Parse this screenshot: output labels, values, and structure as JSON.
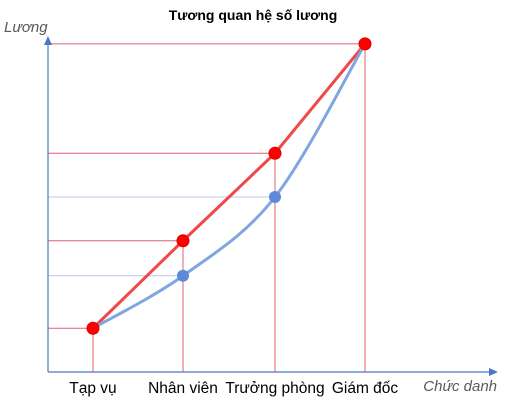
{
  "chart_data": {
    "type": "line",
    "title": "Tương quan hệ số lương",
    "xlabel": "Chức danh",
    "ylabel": "Lương",
    "categories": [
      "Tạp vụ",
      "Nhân viên",
      "Trưởng phòng",
      "Giám đốc"
    ],
    "series": [
      {
        "values": [
          1.0,
          3.0,
          5.0,
          7.5
        ],
        "color": "#f04848"
      },
      {
        "values": [
          1.0,
          2.2,
          4.0,
          7.5
        ],
        "color": "#7fa6e0"
      }
    ],
    "ylim": [
      0,
      8
    ],
    "grid": false,
    "guide_color": "#e06070",
    "guide_color_alt": "#b7cbe8",
    "axis_color": "#4a78c8"
  }
}
